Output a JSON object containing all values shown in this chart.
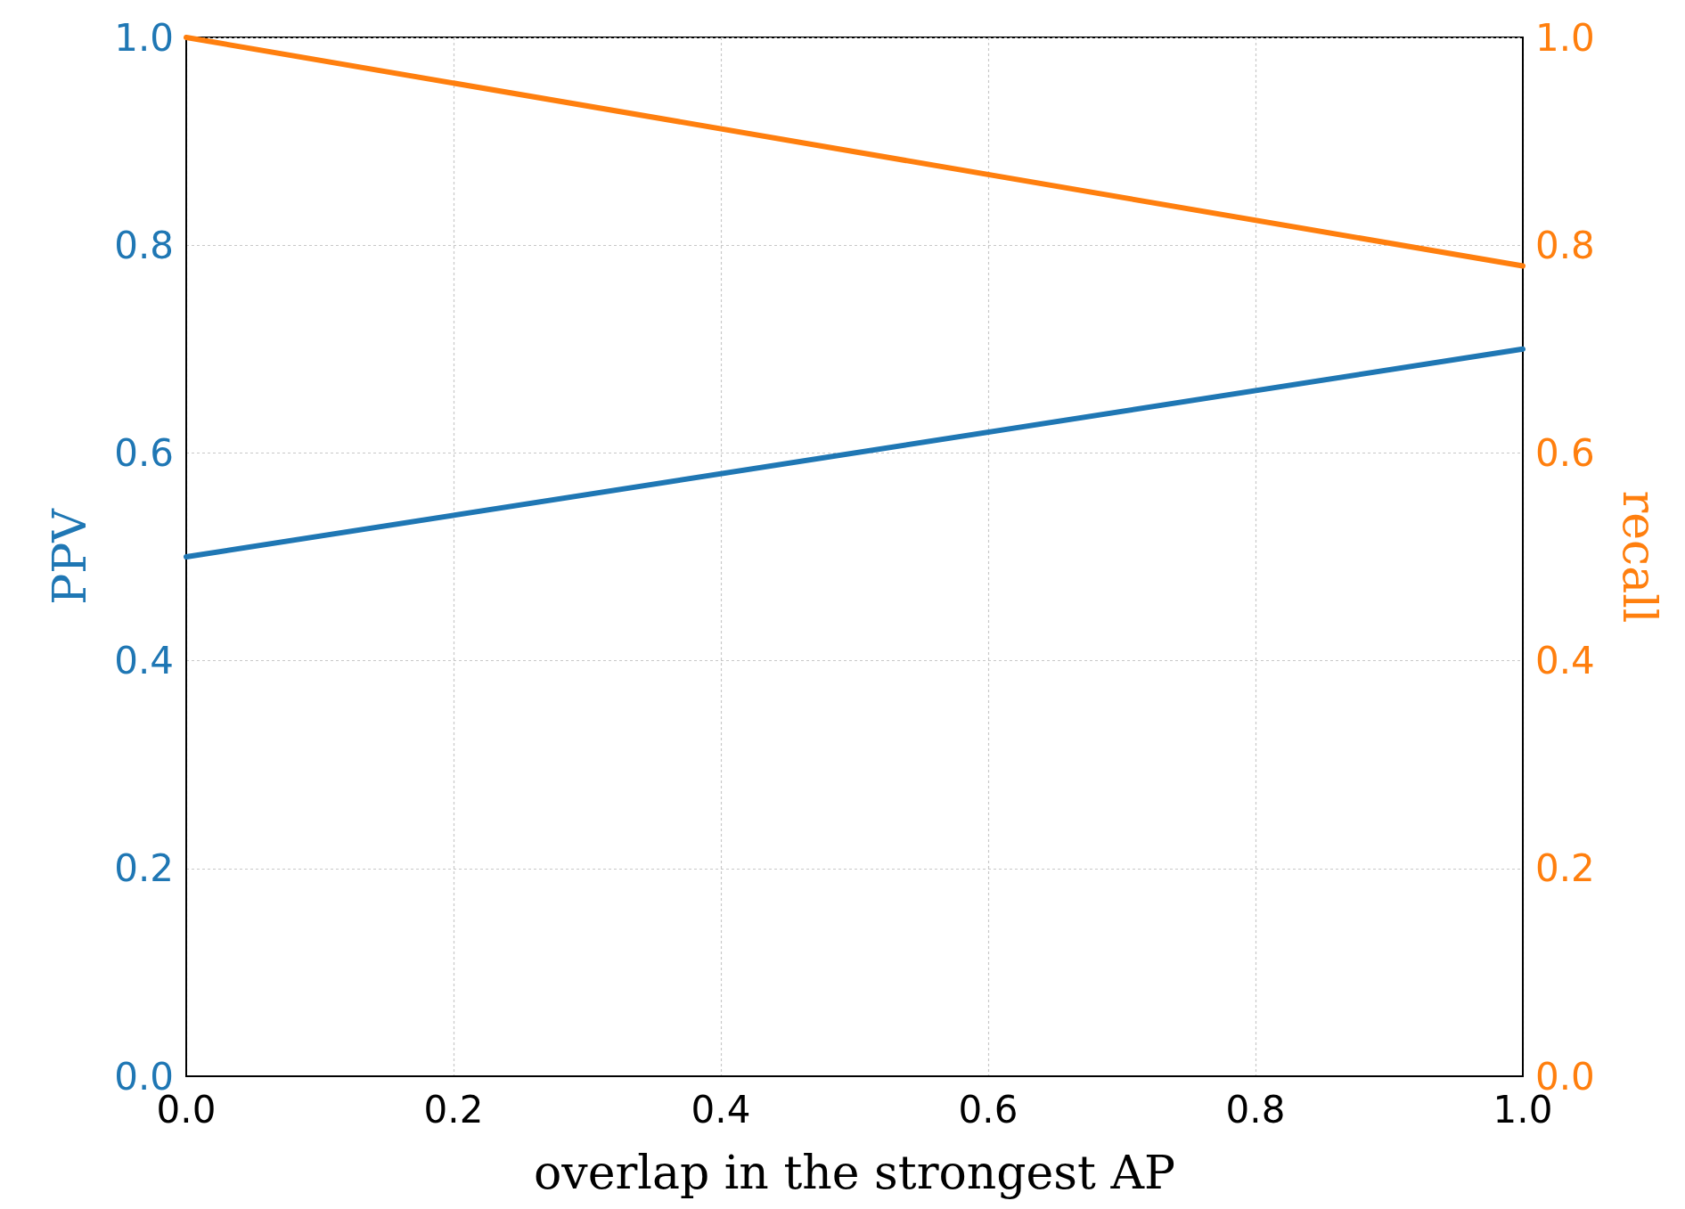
{
  "chart_data": {
    "type": "line",
    "xlabel": "overlap in the strongest AP",
    "ylabel": "PPV",
    "y2label": "recall",
    "x": [
      0.0,
      1.0
    ],
    "series": [
      {
        "name": null,
        "color": "#1f77b4",
        "values": [
          0.5,
          0.7
        ],
        "axis": "y"
      },
      {
        "name": null,
        "color": "#ff7f0e",
        "values": [
          1.0,
          0.78
        ],
        "axis": "y2"
      }
    ],
    "xlim": [
      0.0,
      1.0
    ],
    "xticks": [
      {
        "value": 0,
        "label": "0.0"
      },
      {
        "value": 0.2,
        "label": "0.2"
      },
      {
        "value": 0.4,
        "label": "0.4"
      },
      {
        "value": 0.6,
        "label": "0.6"
      },
      {
        "value": 0.8,
        "label": "0.8"
      },
      {
        "value": 1,
        "label": "1.0"
      }
    ],
    "ylim": [
      0.0,
      1.0
    ],
    "yticks": [
      {
        "value": 0,
        "label": "0.0"
      },
      {
        "value": 0.2,
        "label": "0.2"
      },
      {
        "value": 0.4,
        "label": "0.4"
      },
      {
        "value": 0.6,
        "label": "0.6"
      },
      {
        "value": 0.8,
        "label": "0.8"
      },
      {
        "value": 1,
        "label": "1.0"
      }
    ],
    "y2lim": [
      0.0,
      1.0
    ],
    "y2ticks": [
      {
        "value": 0,
        "label": "0.0"
      },
      {
        "value": 0.2,
        "label": "0.2"
      },
      {
        "value": 0.4,
        "label": "0.4"
      },
      {
        "value": 0.6,
        "label": "0.6"
      },
      {
        "value": 0.8,
        "label": "0.8"
      },
      {
        "value": 1,
        "label": "1.0"
      }
    ],
    "grid": true
  }
}
